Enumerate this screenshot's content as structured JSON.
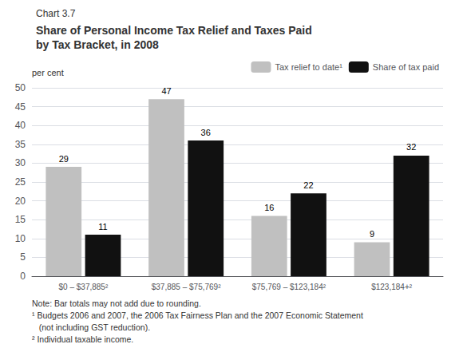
{
  "chart_data": {
    "type": "bar",
    "chart_label": "Chart 3.7",
    "title": "Share of Personal Income Tax Relief and Taxes Paid\nby Tax Bracket, in 2008",
    "ylabel": "per cent",
    "categories": [
      "$0 – $37,885²",
      "$37,885 – $75,769²",
      "$75,769 – $123,184²",
      "$123,184+²"
    ],
    "series": [
      {
        "name": "Tax relief to date¹",
        "color": "#c0c0c0",
        "values": [
          29,
          47,
          16,
          9
        ]
      },
      {
        "name": "Share of tax paid",
        "color": "#111111",
        "values": [
          11,
          36,
          22,
          32
        ]
      }
    ],
    "ylim": [
      0,
      50
    ],
    "yticks": [
      0,
      5,
      10,
      15,
      20,
      25,
      30,
      35,
      40,
      45,
      50
    ],
    "grid": true,
    "legend": "upper right",
    "data_labels": true,
    "notes": [
      "Note: Bar totals may not add due to rounding.",
      "¹ Budgets 2006 and 2007, the 2006 Tax Fairness Plan and the 2007 Economic Statement",
      "   (not including GST reduction).",
      "² Individual taxable income."
    ]
  }
}
